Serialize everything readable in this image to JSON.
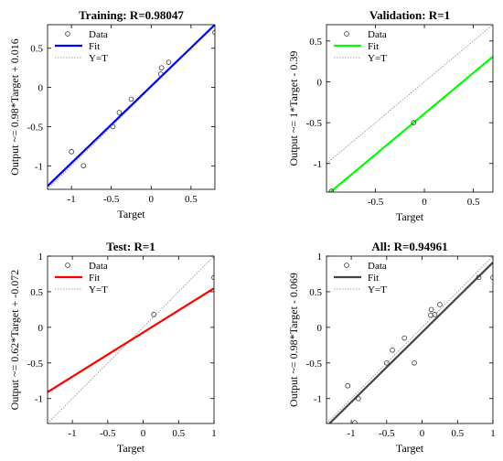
{
  "chart_data": [
    {
      "type": "scatter",
      "title": "Training: R=0.98047",
      "xlabel": "Target",
      "ylabel": "Output ~= 0.98*Target + 0.016",
      "xlim": [
        -1.3,
        0.8
      ],
      "ylim": [
        -1.3,
        0.8
      ],
      "xticks": [
        "-1",
        "-0.5",
        "0",
        "0.5"
      ],
      "yticks": [
        "-1",
        "-0.5",
        "0",
        "0.5"
      ],
      "legend": [
        "Data",
        "Fit",
        "Y=T"
      ],
      "legend_position": "top-left",
      "fit_color": "#0000ff",
      "fit": {
        "slope": 0.98,
        "intercept": 0.016
      },
      "points": [
        {
          "x": -1.0,
          "y": -0.82
        },
        {
          "x": -0.85,
          "y": -1.0
        },
        {
          "x": -0.48,
          "y": -0.5
        },
        {
          "x": -0.4,
          "y": -0.32
        },
        {
          "x": -0.25,
          "y": -0.15
        },
        {
          "x": 0.12,
          "y": 0.17
        },
        {
          "x": 0.13,
          "y": 0.25
        },
        {
          "x": 0.22,
          "y": 0.32
        },
        {
          "x": 0.8,
          "y": 0.7
        }
      ]
    },
    {
      "type": "scatter",
      "title": "Validation: R=1",
      "xlabel": "Target",
      "ylabel": "Output ~= 1*Target - 0.39",
      "xlim": [
        -1.0,
        0.7
      ],
      "ylim": [
        -1.35,
        0.7
      ],
      "xticks": [
        "-0.5",
        "0",
        "0.5"
      ],
      "yticks": [
        "-1",
        "-0.5",
        "0",
        "0.5"
      ],
      "legend": [
        "Data",
        "Fit",
        "Y=T"
      ],
      "legend_position": "top-left",
      "fit_color": "#00ff00",
      "fit": {
        "slope": 1.0,
        "intercept": -0.39
      },
      "points": [
        {
          "x": -0.95,
          "y": -1.34
        },
        {
          "x": -0.11,
          "y": -0.5
        }
      ]
    },
    {
      "type": "scatter",
      "title": "Test: R=1",
      "xlabel": "Target",
      "ylabel": "Output ~= 0.62*Target + -0.072",
      "xlim": [
        -1.35,
        1.0
      ],
      "ylim": [
        -1.35,
        1.0
      ],
      "xticks": [
        "-1",
        "-0.5",
        "0",
        "0.5",
        "1"
      ],
      "yticks": [
        "-1",
        "-0.5",
        "0",
        "0.5",
        "1"
      ],
      "legend": [
        "Data",
        "Fit",
        "Y=T"
      ],
      "legend_position": "top-left",
      "fit_color": "#ff0000",
      "fit": {
        "slope": 0.62,
        "intercept": -0.072
      },
      "points": [
        {
          "x": 0.15,
          "y": 0.18
        },
        {
          "x": 1.0,
          "y": 0.7
        }
      ]
    },
    {
      "type": "scatter",
      "title": "All: R=0.94961",
      "xlabel": "Target",
      "ylabel": "Output ~= 0.98*Target - 0.069",
      "xlim": [
        -1.35,
        1.0
      ],
      "ylim": [
        -1.35,
        1.0
      ],
      "xticks": [
        "-1",
        "-0.5",
        "0",
        "0.5",
        "1"
      ],
      "yticks": [
        "-1",
        "-0.5",
        "0",
        "0.5",
        "1"
      ],
      "legend": [
        "Data",
        "Fit",
        "Y=T"
      ],
      "legend_position": "top-left",
      "fit_color": "#444444",
      "fit": {
        "slope": 0.98,
        "intercept": -0.069
      },
      "points": [
        {
          "x": -1.05,
          "y": -0.82
        },
        {
          "x": -0.9,
          "y": -1.0
        },
        {
          "x": -0.95,
          "y": -1.34
        },
        {
          "x": -0.5,
          "y": -0.5
        },
        {
          "x": -0.42,
          "y": -0.32
        },
        {
          "x": -0.25,
          "y": -0.15
        },
        {
          "x": -0.11,
          "y": -0.5
        },
        {
          "x": 0.12,
          "y": 0.17
        },
        {
          "x": 0.13,
          "y": 0.25
        },
        {
          "x": 0.18,
          "y": 0.18
        },
        {
          "x": 0.25,
          "y": 0.32
        },
        {
          "x": 0.8,
          "y": 0.7
        },
        {
          "x": 1.0,
          "y": 0.7
        }
      ]
    }
  ]
}
